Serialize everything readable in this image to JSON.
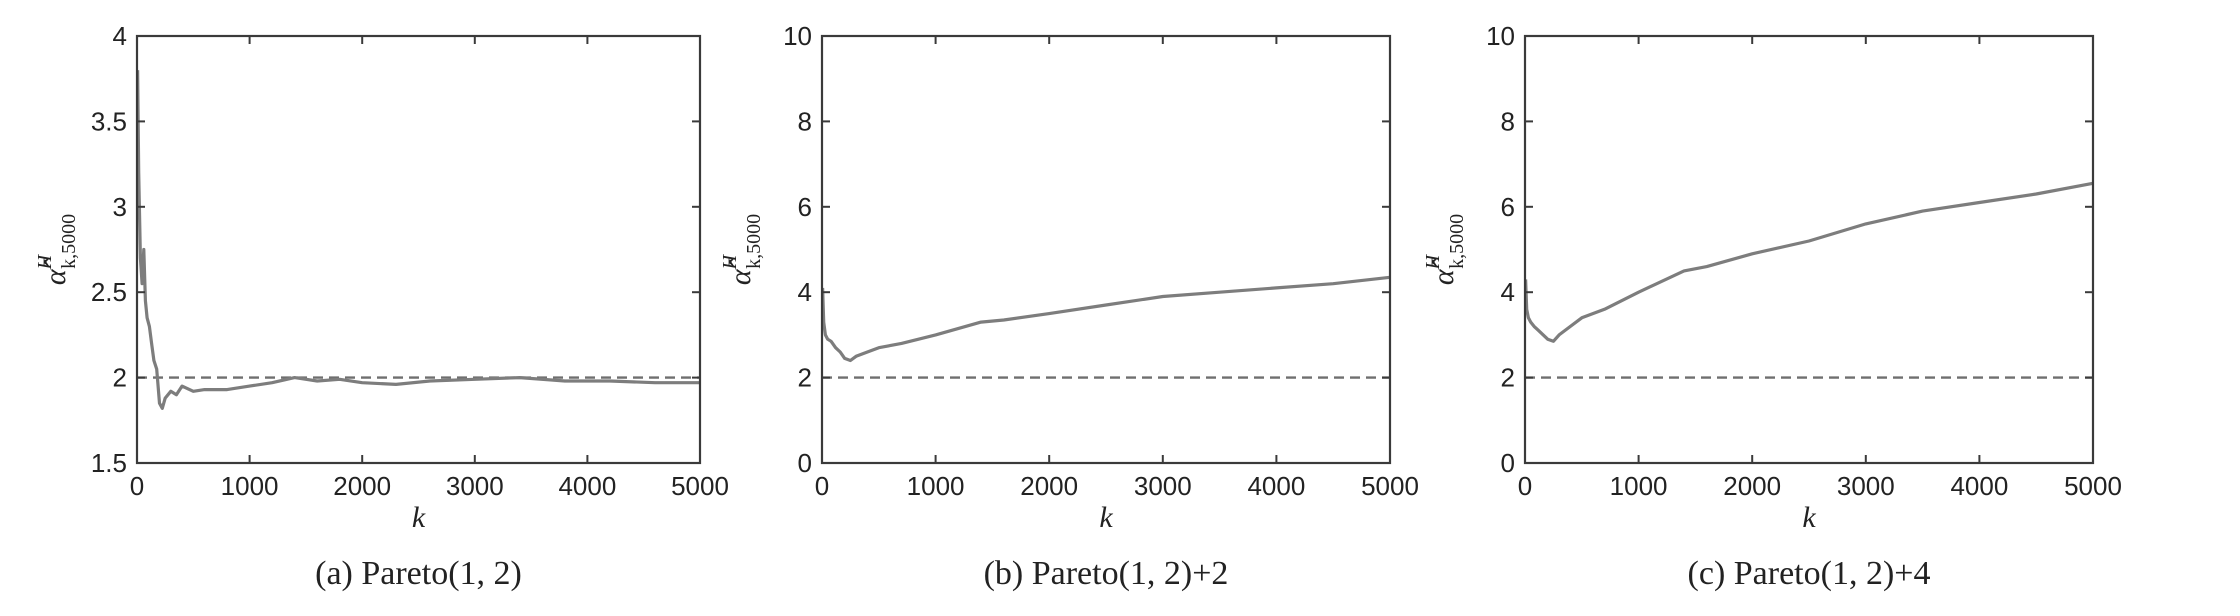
{
  "chart_data": [
    {
      "type": "line",
      "caption": "(a) Pareto(1, 2)",
      "xlabel": "k",
      "ylabel": "α̂",
      "ylabel_sup": "H",
      "ylabel_sub": "k,5000",
      "xlim": [
        0,
        5000
      ],
      "ylim": [
        1.5,
        4
      ],
      "xticks": [
        0,
        1000,
        2000,
        3000,
        4000,
        5000
      ],
      "yticks": [
        1.5,
        2,
        2.5,
        3,
        3.5,
        4
      ],
      "reference_line": 2,
      "grid": false,
      "series": [
        {
          "x": [
            5,
            15,
            30,
            45,
            60,
            75,
            90,
            110,
            130,
            150,
            175,
            200,
            225,
            250,
            300,
            350,
            400,
            500,
            600,
            800,
            1000,
            1200,
            1400,
            1600,
            1800,
            2000,
            2300,
            2600,
            3000,
            3400,
            3800,
            4200,
            4600,
            5000
          ],
          "y": [
            3.8,
            3.2,
            2.7,
            2.55,
            2.75,
            2.45,
            2.35,
            2.3,
            2.2,
            2.1,
            2.05,
            1.85,
            1.82,
            1.88,
            1.92,
            1.9,
            1.95,
            1.92,
            1.93,
            1.93,
            1.95,
            1.97,
            2.0,
            1.98,
            1.99,
            1.97,
            1.96,
            1.98,
            1.99,
            2.0,
            1.98,
            1.98,
            1.97,
            1.97
          ]
        }
      ]
    },
    {
      "type": "line",
      "caption": "(b) Pareto(1, 2)+2",
      "xlabel": "k",
      "ylabel": "α̂",
      "ylabel_sup": "H",
      "ylabel_sub": "k,5000",
      "xlim": [
        0,
        5000
      ],
      "ylim": [
        0,
        10
      ],
      "xticks": [
        0,
        1000,
        2000,
        3000,
        4000,
        5000
      ],
      "yticks": [
        0,
        2,
        4,
        6,
        8,
        10
      ],
      "reference_line": 2,
      "grid": false,
      "series": [
        {
          "x": [
            5,
            15,
            30,
            50,
            80,
            120,
            160,
            200,
            250,
            300,
            400,
            500,
            700,
            1000,
            1400,
            1600,
            2000,
            2500,
            3000,
            3500,
            4000,
            4500,
            5000
          ],
          "y": [
            4.1,
            3.3,
            3.0,
            2.9,
            2.85,
            2.7,
            2.6,
            2.45,
            2.4,
            2.5,
            2.6,
            2.7,
            2.8,
            3.0,
            3.3,
            3.35,
            3.5,
            3.7,
            3.9,
            4.0,
            4.1,
            4.2,
            4.35
          ]
        }
      ]
    },
    {
      "type": "line",
      "caption": "(c) Pareto(1, 2)+4",
      "xlabel": "k",
      "ylabel": "α̂",
      "ylabel_sup": "H",
      "ylabel_sub": "k,5000",
      "xlim": [
        0,
        5000
      ],
      "ylim": [
        0,
        10
      ],
      "xticks": [
        0,
        1000,
        2000,
        3000,
        4000,
        5000
      ],
      "yticks": [
        0,
        2,
        4,
        6,
        8,
        10
      ],
      "reference_line": 2,
      "grid": false,
      "series": [
        {
          "x": [
            5,
            15,
            30,
            50,
            80,
            120,
            160,
            200,
            250,
            300,
            400,
            500,
            700,
            1000,
            1400,
            1600,
            2000,
            2500,
            3000,
            3500,
            4000,
            4500,
            5000
          ],
          "y": [
            4.3,
            3.6,
            3.4,
            3.3,
            3.2,
            3.1,
            3.0,
            2.9,
            2.85,
            3.0,
            3.2,
            3.4,
            3.6,
            4.0,
            4.5,
            4.6,
            4.9,
            5.2,
            5.6,
            5.9,
            6.1,
            6.3,
            6.55
          ]
        }
      ]
    }
  ]
}
